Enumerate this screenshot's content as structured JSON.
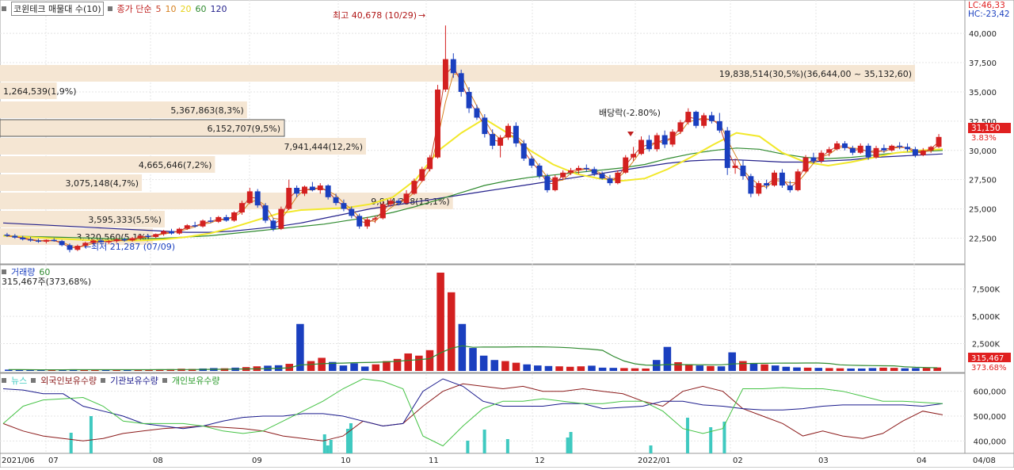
{
  "colors": {
    "up": "#d32020",
    "down": "#1a3fbf",
    "ma5": "#c8402a",
    "ma10": "#d6801e",
    "ma20": "#f2e82a",
    "ma60": "#2f8a2f",
    "ma120": "#25228c",
    "band": "#f5e6d3",
    "foreign": "#8b1a1a",
    "inst": "#1a1a8c",
    "indiv": "#44c244",
    "news": "#3fc9c0"
  },
  "header": {
    "title": "코윈테크 매물대 수(10)",
    "ma_label": "종가 단순",
    "ma_periods": [
      "5",
      "10",
      "20",
      "60",
      "120"
    ],
    "lc": "LC:46,33",
    "hc": "HC:-23,42"
  },
  "annotations": {
    "high": "최고 40,678 (10/29)",
    "low": "최저 21,287 (07/09)",
    "dividend": "배당락(-2.80%)",
    "current_price": "31,150",
    "current_change": "3.83%"
  },
  "volume_panel": {
    "title": "거래량",
    "ma": "60",
    "current": "315,467주(373,68%)",
    "tag_value": "315,467",
    "tag_pct": "373.68%"
  },
  "holding_panel": {
    "news": "뉴스",
    "foreign": "외국인보유수량",
    "inst": "기관보유수량",
    "indiv": "개인보유수량"
  },
  "chart_data": {
    "type": "candlestick",
    "price_axis": {
      "ticks": [
        "40,000",
        "37,500",
        "35,000",
        "32,500",
        "30,000",
        "27,500",
        "25,000",
        "22,500"
      ],
      "range": [
        20500,
        41500
      ]
    },
    "volume_axis": {
      "ticks": [
        "7,500K",
        "5,000K",
        "2,500K"
      ],
      "range": [
        0,
        9000
      ]
    },
    "holding_axis": {
      "ticks": [
        "600,000",
        "500,000",
        "400,000"
      ],
      "range": [
        350000,
        650000
      ]
    },
    "x_labels": [
      "2021/06",
      "07",
      "08",
      "09",
      "10",
      "11",
      "12",
      "2022/01",
      "02",
      "03",
      "04",
      "04/08"
    ],
    "volume_profile": [
      {
        "label": "19,838,514(30,5%)(36,644,00 ~ 35,132,60)",
        "length": 1.0
      },
      {
        "label": "1,264,539(1,9%)",
        "length": 0.062
      },
      {
        "label": "5,367,863(8,3%)",
        "length": 0.27
      },
      {
        "label": "6,152,707(9,5%)",
        "length": 0.31
      },
      {
        "label": "7,941,444(12,2%)",
        "length": 0.4
      },
      {
        "label": "4,665,646(7,2%)",
        "length": 0.235
      },
      {
        "label": "3,075,148(4,7%)",
        "length": 0.155
      },
      {
        "label": "9,814,258(15,1%)",
        "length": 0.495
      },
      {
        "label": "3,595,333(5,5%)",
        "length": 0.18
      },
      {
        "label": "3,320,560(5,1%)",
        "length": 0.167
      }
    ],
    "candles": [
      [
        22800,
        22950,
        22600,
        22700
      ],
      [
        22700,
        22850,
        22450,
        22550
      ],
      [
        22550,
        22700,
        22300,
        22400
      ],
      [
        22400,
        22600,
        22200,
        22300
      ],
      [
        22300,
        22450,
        22100,
        22200
      ],
      [
        22200,
        22400,
        22050,
        22350
      ],
      [
        22350,
        22500,
        22200,
        22250
      ],
      [
        22250,
        22350,
        21800,
        21900
      ],
      [
        21900,
        22050,
        21287,
        21500
      ],
      [
        21500,
        21950,
        21400,
        21850
      ],
      [
        21850,
        22200,
        21700,
        22100
      ],
      [
        22100,
        22400,
        21950,
        22300
      ],
      [
        22300,
        22450,
        22100,
        22150
      ],
      [
        22150,
        22350,
        22000,
        22250
      ],
      [
        22250,
        22500,
        22100,
        22400
      ],
      [
        22400,
        22550,
        22200,
        22300
      ],
      [
        22300,
        22600,
        22200,
        22500
      ],
      [
        22500,
        22800,
        22400,
        22700
      ],
      [
        22700,
        22850,
        22500,
        22600
      ],
      [
        22600,
        22900,
        22500,
        22850
      ],
      [
        22850,
        23200,
        22700,
        23100
      ],
      [
        23100,
        23300,
        22800,
        22900
      ],
      [
        22900,
        23400,
        22800,
        23300
      ],
      [
        23300,
        23700,
        23200,
        23600
      ],
      [
        23600,
        23900,
        23400,
        23500
      ],
      [
        23500,
        24100,
        23400,
        24000
      ],
      [
        24000,
        24300,
        23800,
        23900
      ],
      [
        23900,
        24400,
        23800,
        24300
      ],
      [
        24300,
        24500,
        23900,
        24000
      ],
      [
        24000,
        24800,
        23900,
        24700
      ],
      [
        24700,
        25700,
        24500,
        25500
      ],
      [
        25500,
        26800,
        25400,
        26500
      ],
      [
        26500,
        26700,
        25100,
        25300
      ],
      [
        25300,
        25500,
        23800,
        24000
      ],
      [
        24000,
        24200,
        23100,
        23300
      ],
      [
        23300,
        25200,
        23200,
        25000
      ],
      [
        25000,
        27500,
        24900,
        26800
      ],
      [
        26800,
        27000,
        26000,
        26300
      ],
      [
        26300,
        27000,
        26100,
        26900
      ],
      [
        26900,
        27300,
        26500,
        26600
      ],
      [
        26600,
        27200,
        26300,
        27000
      ],
      [
        27000,
        27100,
        25800,
        26000
      ],
      [
        26000,
        26300,
        25300,
        25500
      ],
      [
        25500,
        25800,
        24800,
        25000
      ],
      [
        25000,
        25200,
        24200,
        24400
      ],
      [
        24400,
        24600,
        23300,
        23500
      ],
      [
        23500,
        24300,
        23300,
        24100
      ],
      [
        24100,
        24400,
        23800,
        24200
      ],
      [
        24200,
        25600,
        24100,
        25400
      ],
      [
        25400,
        25900,
        25200,
        25700
      ],
      [
        25700,
        25900,
        25300,
        25500
      ],
      [
        25500,
        26600,
        25400,
        26300
      ],
      [
        26300,
        27600,
        26200,
        27400
      ],
      [
        27400,
        28600,
        27300,
        28400
      ],
      [
        28400,
        29600,
        28200,
        29400
      ],
      [
        29400,
        35600,
        29300,
        35200
      ],
      [
        35200,
        40678,
        35000,
        37800
      ],
      [
        37800,
        38300,
        36200,
        36600
      ],
      [
        36600,
        36900,
        34600,
        35000
      ],
      [
        35000,
        35400,
        33200,
        33600
      ],
      [
        33600,
        33900,
        32600,
        32800
      ],
      [
        32800,
        33100,
        31100,
        31400
      ],
      [
        31400,
        31800,
        30100,
        30400
      ],
      [
        30400,
        31300,
        29400,
        31100
      ],
      [
        31100,
        32300,
        30900,
        32100
      ],
      [
        32100,
        32400,
        30300,
        30600
      ],
      [
        30600,
        30900,
        29100,
        29300
      ],
      [
        29300,
        29500,
        28500,
        28700
      ],
      [
        28700,
        28900,
        27600,
        27800
      ],
      [
        27800,
        28000,
        26400,
        26600
      ],
      [
        26600,
        27900,
        26500,
        27700
      ],
      [
        27700,
        28300,
        27500,
        28100
      ],
      [
        28100,
        28500,
        27900,
        28300
      ],
      [
        28300,
        28700,
        28000,
        28500
      ],
      [
        28500,
        28800,
        28200,
        28400
      ],
      [
        28400,
        28600,
        27800,
        28000
      ],
      [
        28000,
        28200,
        27500,
        27600
      ],
      [
        27600,
        27900,
        27000,
        27200
      ],
      [
        27200,
        28300,
        27100,
        28100
      ],
      [
        28100,
        29600,
        28000,
        29400
      ],
      [
        29400,
        30300,
        29100,
        29700
      ],
      [
        29700,
        31200,
        29600,
        30900
      ],
      [
        30900,
        31300,
        29900,
        30100
      ],
      [
        30100,
        31500,
        29900,
        31300
      ],
      [
        31300,
        31700,
        30200,
        30500
      ],
      [
        30500,
        31800,
        30300,
        31600
      ],
      [
        31600,
        32600,
        31400,
        32400
      ],
      [
        32400,
        33600,
        32200,
        33300
      ],
      [
        33300,
        33400,
        31900,
        32100
      ],
      [
        32100,
        33200,
        31900,
        33000
      ],
      [
        33000,
        33300,
        32300,
        32500
      ],
      [
        32500,
        33200,
        31500,
        31700
      ],
      [
        31700,
        32000,
        27900,
        28500
      ],
      [
        28500,
        29300,
        28000,
        28700
      ],
      [
        28700,
        29200,
        27500,
        27800
      ],
      [
        27800,
        28000,
        26000,
        26300
      ],
      [
        26300,
        27400,
        26100,
        27200
      ],
      [
        27200,
        27500,
        26700,
        27000
      ],
      [
        27000,
        28300,
        26900,
        28100
      ],
      [
        28100,
        28400,
        26800,
        27000
      ],
      [
        27000,
        27400,
        26400,
        26600
      ],
      [
        26600,
        28400,
        26500,
        28200
      ],
      [
        28200,
        29600,
        28100,
        29400
      ],
      [
        29400,
        29800,
        28900,
        29100
      ],
      [
        29100,
        30000,
        28900,
        29800
      ],
      [
        29800,
        30300,
        29500,
        30100
      ],
      [
        30100,
        30800,
        30000,
        30600
      ],
      [
        30600,
        30800,
        30000,
        30200
      ],
      [
        30200,
        30400,
        29600,
        29800
      ],
      [
        29800,
        30600,
        29700,
        30400
      ],
      [
        30400,
        30600,
        29200,
        29400
      ],
      [
        29400,
        30400,
        29300,
        30200
      ],
      [
        30200,
        30500,
        29800,
        30000
      ],
      [
        30000,
        30500,
        29900,
        30400
      ],
      [
        30400,
        30700,
        30100,
        30300
      ],
      [
        30300,
        30600,
        29900,
        30100
      ],
      [
        30100,
        30300,
        29400,
        29600
      ],
      [
        29600,
        30200,
        29500,
        30000
      ],
      [
        30000,
        30400,
        29800,
        30300
      ],
      [
        30300,
        31400,
        30200,
        31150
      ]
    ],
    "ma_series": {
      "ma20": [
        22700,
        22600,
        22500,
        22400,
        22300,
        22300,
        22300,
        22400,
        22600,
        22900,
        23400,
        24000,
        24600,
        24900,
        25000,
        25100,
        25400,
        26000,
        27500,
        30000,
        31500,
        32700,
        31500,
        30000,
        28800,
        28000,
        27600,
        27400,
        27600,
        28400,
        29400,
        30500,
        31500,
        31200,
        29800,
        29000,
        28700,
        29000,
        29400,
        29800,
        30000,
        30100
      ],
      "ma60": [
        22700,
        22650,
        22600,
        22550,
        22500,
        22450,
        22450,
        22500,
        22600,
        22700,
        22900,
        23100,
        23300,
        23500,
        23700,
        24000,
        24300,
        24700,
        25200,
        25800,
        26400,
        27000,
        27400,
        27700,
        27900,
        28100,
        28300,
        28500,
        28800,
        29300,
        29700,
        30000,
        30200,
        30100,
        29700,
        29400,
        29300,
        29400,
        29600,
        29800,
        29900,
        30000
      ],
      "ma120": [
        23800,
        23700,
        23600,
        23500,
        23400,
        23300,
        23200,
        23100,
        23000,
        23000,
        23100,
        23300,
        23500,
        23800,
        24200,
        24600,
        25000,
        25300,
        25600,
        25900,
        26200,
        26500,
        26800,
        27100,
        27400,
        27700,
        28000,
        28300,
        28600,
        28900,
        29100,
        29200,
        29200,
        29100,
        29000,
        29000,
        29100,
        29200,
        29400,
        29500,
        29600,
        29700
      ]
    },
    "volume": [
      120,
      110,
      90,
      80,
      100,
      90,
      150,
      140,
      110,
      90,
      100,
      130,
      120,
      140,
      150,
      160,
      200,
      180,
      220,
      260,
      240,
      300,
      350,
      420,
      480,
      520,
      650,
      4300,
      900,
      1200,
      820,
      500,
      700,
      400,
      600,
      900,
      1100,
      1600,
      1400,
      1900,
      9000,
      7200,
      4300,
      2100,
      1400,
      1000,
      900,
      750,
      600,
      500,
      450,
      420,
      380,
      420,
      480,
      300,
      280,
      260,
      240,
      220,
      1000,
      2200,
      800,
      600,
      500,
      450,
      420,
      1700,
      900,
      700,
      600,
      500,
      380,
      320,
      300,
      280,
      260,
      240,
      220,
      220,
      260,
      300,
      280,
      240,
      260,
      280,
      315
    ],
    "holdings": {
      "foreign": [
        470,
        440,
        420,
        410,
        400,
        410,
        430,
        440,
        450,
        455,
        460,
        455,
        450,
        440,
        420,
        410,
        400,
        420,
        480,
        460,
        470,
        540,
        600,
        630,
        620,
        610,
        620,
        600,
        600,
        610,
        600,
        590,
        560,
        540,
        600,
        620,
        600,
        530,
        500,
        470,
        420,
        440,
        420,
        410,
        430,
        480,
        520,
        505
      ],
      "inst": [
        610,
        605,
        590,
        590,
        540,
        520,
        500,
        470,
        460,
        450,
        460,
        480,
        495,
        500,
        500,
        510,
        510,
        500,
        480,
        460,
        470,
        600,
        650,
        620,
        560,
        540,
        540,
        540,
        550,
        550,
        530,
        535,
        540,
        560,
        560,
        545,
        540,
        530,
        525,
        525,
        530,
        540,
        545,
        545,
        545,
        545,
        540,
        550
      ],
      "indiv": [
        470,
        540,
        565,
        570,
        575,
        540,
        480,
        470,
        470,
        470,
        460,
        440,
        430,
        440,
        480,
        520,
        560,
        610,
        650,
        640,
        610,
        420,
        380,
        460,
        530,
        560,
        560,
        570,
        560,
        550,
        550,
        560,
        560,
        520,
        450,
        430,
        450,
        610,
        610,
        615,
        610,
        610,
        600,
        580,
        560,
        560,
        555,
        550
      ],
      "news": [
        0,
        0,
        0,
        0,
        0,
        0,
        0,
        0,
        0,
        0,
        0,
        0,
        0,
        0,
        0,
        0,
        0,
        0,
        0,
        0,
        0,
        0,
        0,
        0,
        0,
        0,
        0,
        0,
        0,
        0,
        0,
        0,
        0,
        0,
        0,
        0,
        0,
        0,
        0,
        0,
        0,
        0,
        0,
        0,
        0,
        0,
        0,
        0
      ]
    }
  }
}
